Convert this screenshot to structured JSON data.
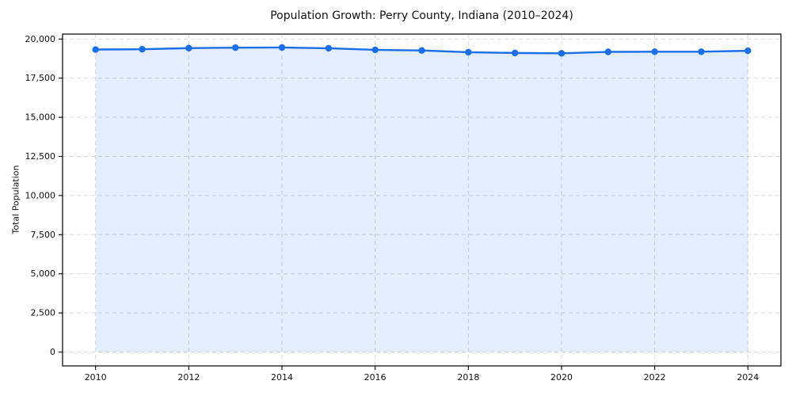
{
  "chart_data": {
    "type": "line",
    "title": "Population Growth: Perry County, Indiana (2010–2024)",
    "xlabel": "",
    "ylabel": "Total Population",
    "x": [
      2010,
      2011,
      2012,
      2013,
      2014,
      2015,
      2016,
      2017,
      2018,
      2019,
      2020,
      2021,
      2022,
      2023,
      2024
    ],
    "series": [
      {
        "name": "Total Population",
        "values": [
          19330,
          19350,
          19420,
          19450,
          19460,
          19410,
          19310,
          19270,
          19160,
          19110,
          19090,
          19180,
          19190,
          19190,
          19250
        ]
      }
    ],
    "x_ticks": [
      2010,
      2012,
      2014,
      2016,
      2018,
      2020,
      2022,
      2024
    ],
    "y_ticks": [
      0,
      2500,
      5000,
      7500,
      10000,
      12500,
      15000,
      17500,
      20000
    ],
    "y_tick_labels": [
      "0",
      "2,500",
      "5,000",
      "7,500",
      "10,000",
      "12,500",
      "15,000",
      "17,500",
      "20,000"
    ],
    "ylim": [
      0,
      20000
    ],
    "grid": true,
    "legend": "none",
    "marker": "circle",
    "area_fill": true,
    "colors": {
      "line": "#1a6ee8",
      "fill": "rgba(26,110,232,0.12)",
      "grid": "#d9d9d9",
      "axis": "#000000",
      "text": "#111111"
    }
  }
}
